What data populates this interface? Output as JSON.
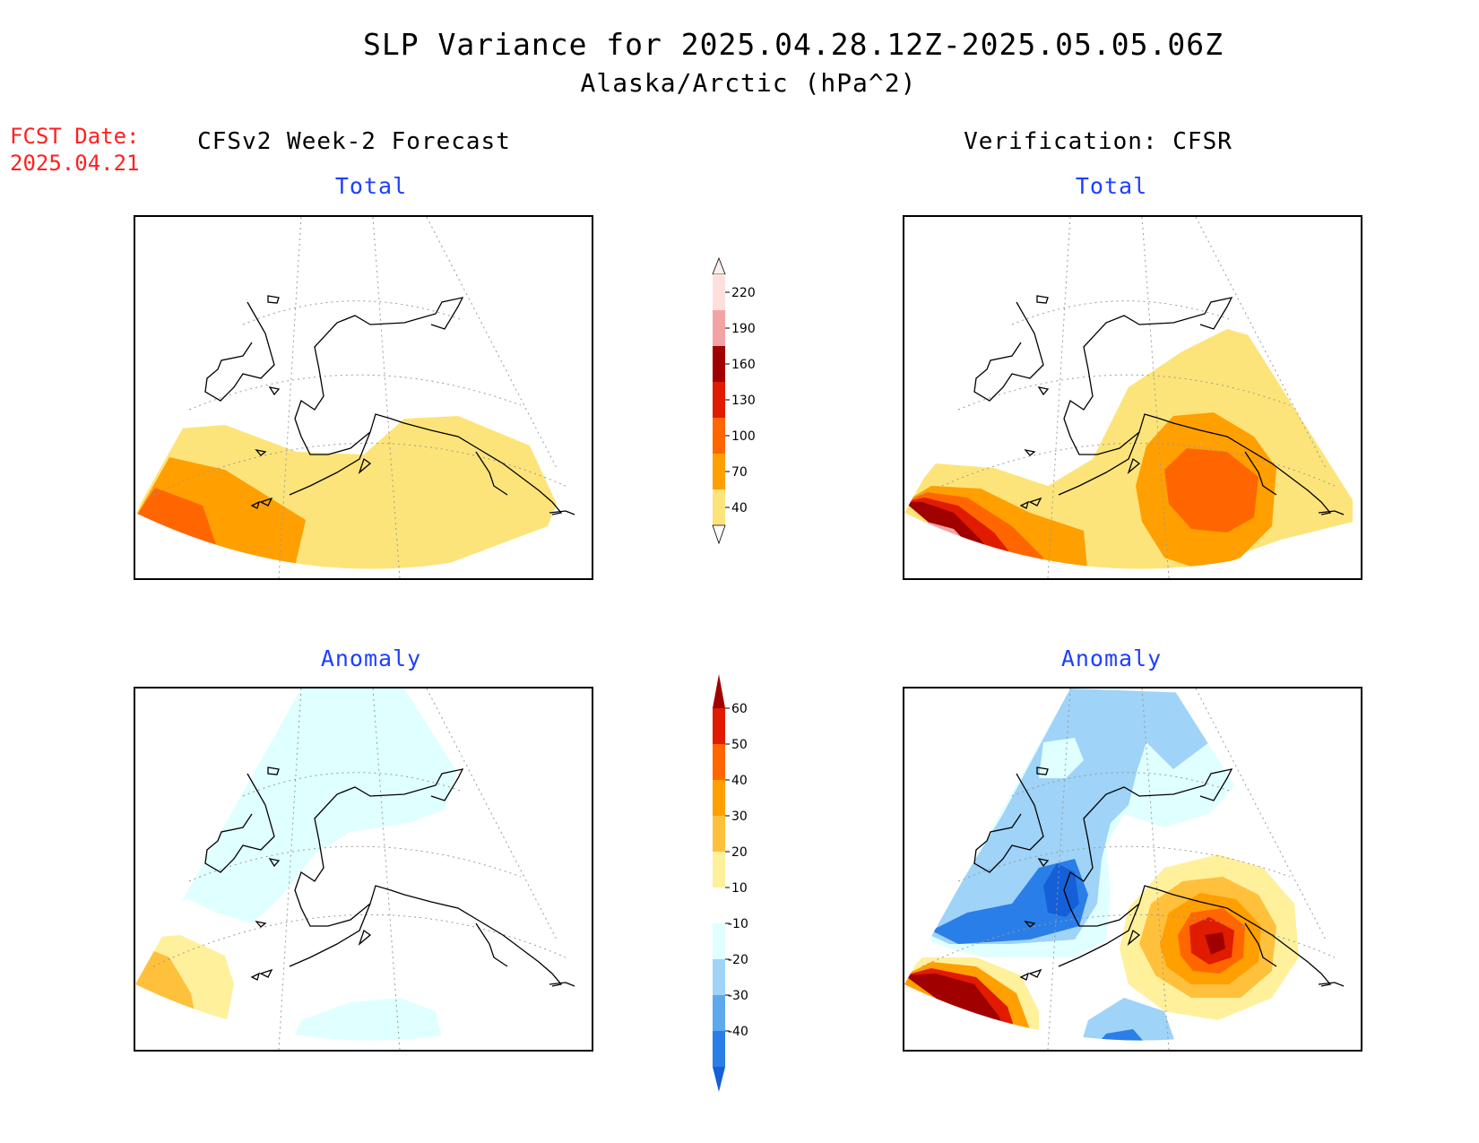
{
  "header": {
    "title": "SLP Variance for 2025.04.28.12Z-2025.05.05.06Z",
    "subtitle": "Alaska/Arctic (hPa^2)",
    "fcst_label": "FCST Date:",
    "fcst_date": "2025.04.21"
  },
  "columns": {
    "left": "CFSv2 Week-2 Forecast",
    "right": "Verification: CFSR"
  },
  "panels": {
    "top_left": "Total",
    "top_right": "Total",
    "bottom_left": "Anomaly",
    "bottom_right": "Anomaly"
  },
  "colorbar_total": {
    "labels": [
      "220",
      "190",
      "160",
      "130",
      "100",
      "70",
      "40"
    ],
    "colors": [
      "#fde0dc",
      "#f4a3a3",
      "#a00000",
      "#e01b00",
      "#ff6600",
      "#ff9f00",
      "#fde47a"
    ]
  },
  "colorbar_anomaly": {
    "labels": [
      "60",
      "50",
      "40",
      "30",
      "20",
      "10",
      "-10",
      "-20",
      "-30",
      "-40"
    ],
    "colors": [
      "#a00000",
      "#e01b00",
      "#ff6600",
      "#ff9f00",
      "#ffc03c",
      "#fff09c",
      "#ffffff",
      "#e0ffff",
      "#9fd3f7",
      "#5ea8ee",
      "#2a7ee8",
      "#1560d8"
    ]
  },
  "colors": {
    "title_blue": "#1f3fff",
    "fcst_red": "#ff2020"
  }
}
